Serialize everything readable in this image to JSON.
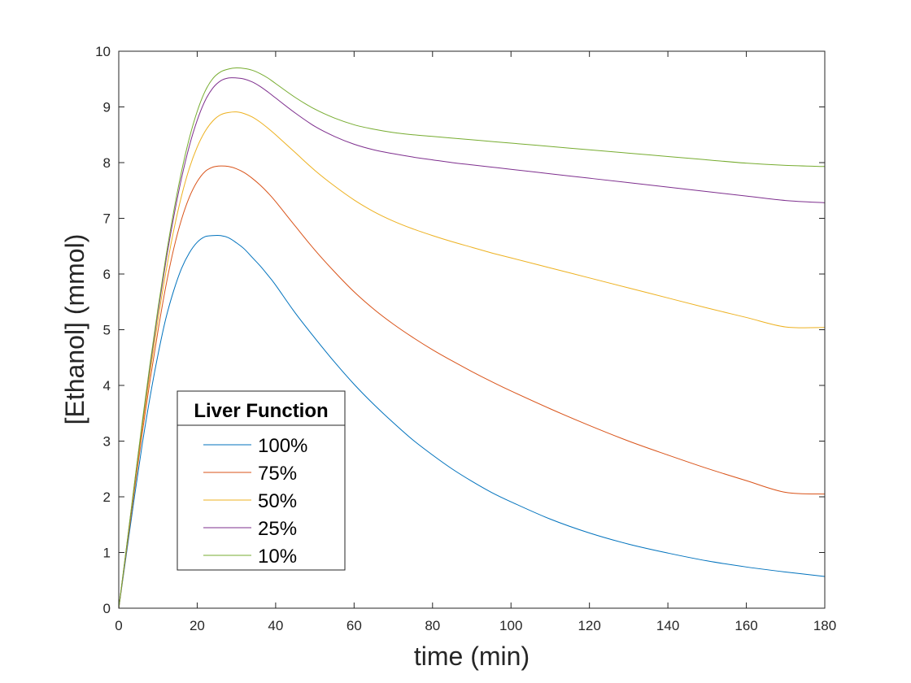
{
  "chart_data": {
    "type": "line",
    "xlabel": "time (min)",
    "ylabel": "[Ethanol] (mmol)",
    "xlim": [
      0,
      180
    ],
    "ylim": [
      0,
      10
    ],
    "xticks": [
      "0",
      "20",
      "40",
      "60",
      "80",
      "100",
      "120",
      "140",
      "160",
      "180"
    ],
    "yticks": [
      "0",
      "1",
      "2",
      "3",
      "4",
      "5",
      "6",
      "7",
      "8",
      "9",
      "10"
    ],
    "grid": false,
    "box": true,
    "legend": {
      "title": "Liver Function",
      "location": "bottom-left"
    },
    "x": [
      0,
      2,
      4,
      6,
      8,
      10,
      12,
      14,
      16,
      18,
      20,
      22,
      24,
      26,
      28,
      30,
      32,
      34,
      36,
      38,
      40,
      45,
      50,
      55,
      60,
      65,
      70,
      75,
      80,
      85,
      90,
      95,
      100,
      110,
      120,
      130,
      140,
      150,
      160,
      170,
      180
    ],
    "series": [
      {
        "name": "100%",
        "color": "#0072BD",
        "values": [
          0,
          1.0,
          2.0,
          2.95,
          3.8,
          4.55,
          5.2,
          5.7,
          6.1,
          6.38,
          6.57,
          6.67,
          6.69,
          6.69,
          6.65,
          6.56,
          6.45,
          6.3,
          6.15,
          5.98,
          5.8,
          5.3,
          4.85,
          4.42,
          4.02,
          3.66,
          3.33,
          3.02,
          2.75,
          2.5,
          2.28,
          2.08,
          1.91,
          1.6,
          1.35,
          1.15,
          0.99,
          0.85,
          0.74,
          0.65,
          0.57
        ]
      },
      {
        "name": "75%",
        "color": "#D95319",
        "values": [
          0,
          1.05,
          2.12,
          3.15,
          4.1,
          4.98,
          5.78,
          6.45,
          6.98,
          7.38,
          7.66,
          7.84,
          7.92,
          7.94,
          7.93,
          7.89,
          7.82,
          7.72,
          7.6,
          7.46,
          7.3,
          6.86,
          6.43,
          6.04,
          5.68,
          5.37,
          5.1,
          4.86,
          4.64,
          4.44,
          4.25,
          4.07,
          3.9,
          3.58,
          3.28,
          3.0,
          2.75,
          2.51,
          2.29,
          2.08,
          2.05
        ]
      },
      {
        "name": "50%",
        "color": "#EDB120",
        "values": [
          0,
          1.08,
          2.18,
          3.25,
          4.25,
          5.18,
          6.03,
          6.78,
          7.4,
          7.9,
          8.28,
          8.56,
          8.75,
          8.86,
          8.9,
          8.91,
          8.88,
          8.82,
          8.73,
          8.62,
          8.5,
          8.18,
          7.86,
          7.58,
          7.33,
          7.12,
          6.95,
          6.81,
          6.69,
          6.58,
          6.48,
          6.38,
          6.29,
          6.11,
          5.93,
          5.75,
          5.57,
          5.39,
          5.22,
          5.05,
          5.04
        ]
      },
      {
        "name": "25%",
        "color": "#7E2F8E",
        "values": [
          0,
          1.1,
          2.22,
          3.32,
          4.35,
          5.32,
          6.22,
          7.02,
          7.72,
          8.3,
          8.76,
          9.11,
          9.34,
          9.47,
          9.52,
          9.52,
          9.5,
          9.45,
          9.37,
          9.27,
          9.16,
          8.89,
          8.65,
          8.47,
          8.33,
          8.23,
          8.16,
          8.1,
          8.05,
          8.0,
          7.96,
          7.92,
          7.88,
          7.8,
          7.72,
          7.64,
          7.56,
          7.48,
          7.4,
          7.32,
          7.28
        ]
      },
      {
        "name": "10%",
        "color": "#77AC30",
        "values": [
          0,
          1.11,
          2.24,
          3.35,
          4.4,
          5.38,
          6.3,
          7.12,
          7.84,
          8.44,
          8.92,
          9.28,
          9.51,
          9.63,
          9.68,
          9.7,
          9.69,
          9.66,
          9.6,
          9.52,
          9.42,
          9.17,
          8.96,
          8.8,
          8.68,
          8.6,
          8.54,
          8.5,
          8.47,
          8.44,
          8.41,
          8.38,
          8.35,
          8.29,
          8.23,
          8.17,
          8.11,
          8.05,
          7.99,
          7.95,
          7.93
        ]
      }
    ]
  }
}
